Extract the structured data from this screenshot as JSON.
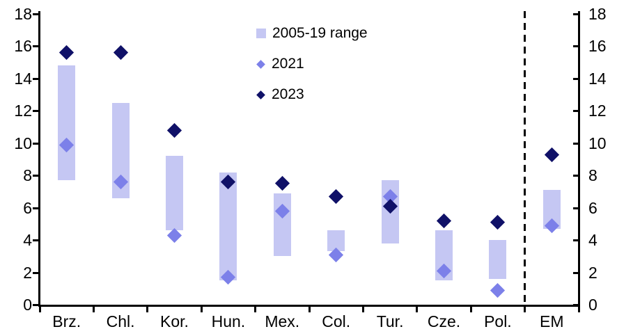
{
  "chart_data": {
    "type": "bar",
    "subtype": "range-bars-with-diamond-markers",
    "title": "",
    "xlabel": "",
    "ylabel": "",
    "ylim": [
      0,
      18
    ],
    "ytick_step": 2,
    "grid": false,
    "legend_position": "top-center",
    "axis_color": "#000000",
    "separator": {
      "style": "dashed-vertical-line",
      "between": [
        "Pol.",
        "EM"
      ]
    },
    "categories": [
      "Brz.",
      "Chl.",
      "Kor.",
      "Hun.",
      "Mex.",
      "Col.",
      "Tur.",
      "Cze.",
      "Pol.",
      "EM"
    ],
    "series": [
      {
        "name": "2005-19 range",
        "marker": "bar",
        "color": "#c5c7f3",
        "low": [
          7.7,
          6.6,
          4.6,
          1.5,
          3.0,
          3.3,
          3.8,
          1.5,
          1.6,
          4.7
        ],
        "high": [
          14.8,
          12.5,
          9.2,
          8.2,
          6.9,
          4.6,
          7.7,
          4.6,
          4.0,
          7.1
        ]
      },
      {
        "name": "2021",
        "marker": "diamond",
        "color": "#7c80e9",
        "values": [
          9.9,
          7.6,
          4.3,
          1.7,
          5.8,
          3.1,
          6.7,
          2.1,
          0.9,
          4.9
        ]
      },
      {
        "name": "2023",
        "marker": "diamond",
        "color": "#101168",
        "values": [
          15.6,
          15.6,
          10.8,
          7.6,
          7.5,
          6.7,
          6.1,
          5.2,
          5.1,
          9.3
        ]
      }
    ]
  }
}
